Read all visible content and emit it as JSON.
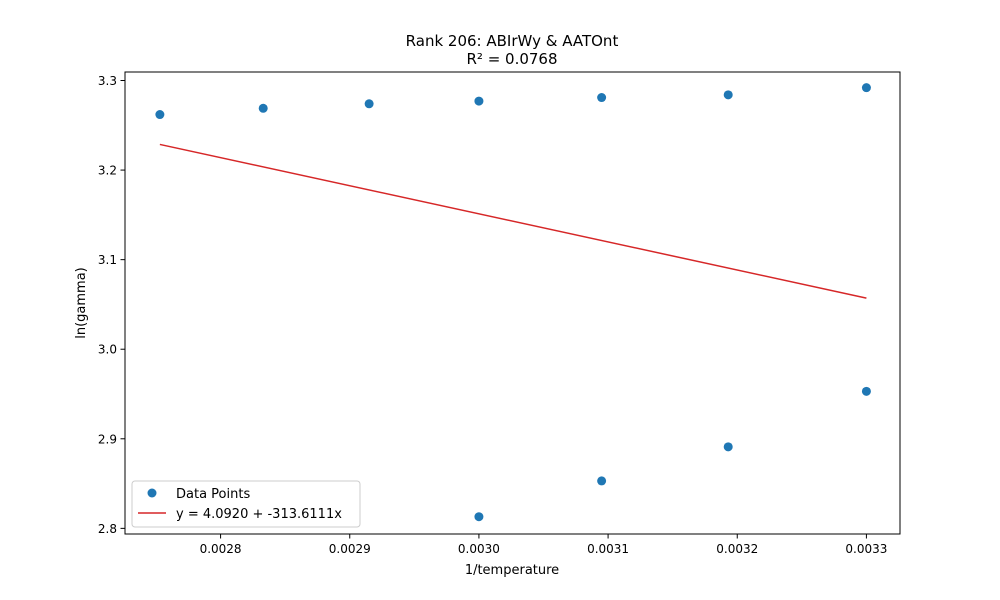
{
  "chart_data": {
    "type": "scatter",
    "title": "Rank 206: ABIrWy & AATOnt",
    "subtitle": "R² = 0.0768",
    "xlabel": "1/temperature",
    "ylabel": "ln(gamma)",
    "xlim": [
      0.002726,
      0.003326
    ],
    "ylim": [
      2.7937,
      3.3095
    ],
    "x_ticks": [
      0.0028,
      0.0029,
      0.003,
      0.0031,
      0.0032,
      0.0033
    ],
    "x_tick_labels": [
      "0.0028",
      "0.0029",
      "0.0030",
      "0.0031",
      "0.0032",
      "0.0033"
    ],
    "y_ticks": [
      2.8,
      2.9,
      3.0,
      3.1,
      3.2,
      3.3
    ],
    "y_tick_labels": [
      "2.8",
      "2.9",
      "3.0",
      "3.1",
      "3.2",
      "3.3"
    ],
    "grid": false,
    "legend_position": "lower-left",
    "series": [
      {
        "name": "Data Points",
        "kind": "scatter",
        "color": "#1f77b4",
        "points": [
          [
            0.002753,
            3.262
          ],
          [
            0.002833,
            3.269
          ],
          [
            0.002915,
            3.274
          ],
          [
            0.003,
            3.277
          ],
          [
            0.003095,
            3.281
          ],
          [
            0.003193,
            3.284
          ],
          [
            0.0033,
            3.292
          ],
          [
            0.003,
            2.813
          ],
          [
            0.003095,
            2.853
          ],
          [
            0.003193,
            2.891
          ],
          [
            0.0033,
            2.953
          ]
        ]
      },
      {
        "name": "y = 4.0920 + -313.6111x",
        "kind": "line",
        "color": "#d62728",
        "intercept": 4.092,
        "slope": -313.6111,
        "x_range": [
          0.002753,
          0.0033
        ]
      }
    ]
  }
}
